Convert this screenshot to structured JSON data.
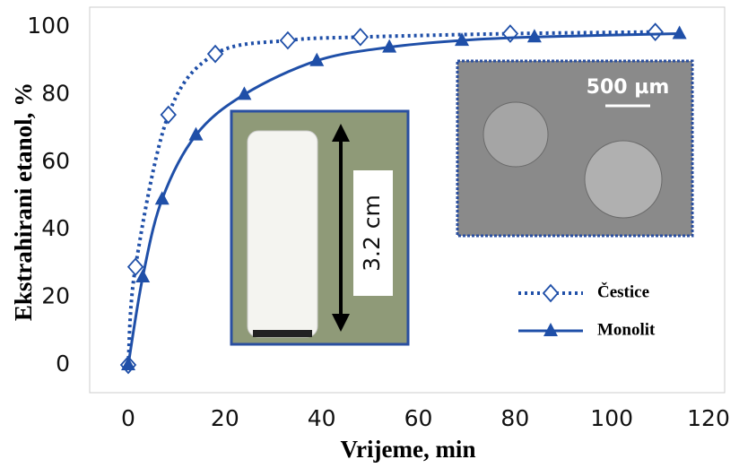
{
  "chart_data": {
    "type": "line",
    "x_label": "Vrijeme, min",
    "y_label": "Ekstrahirani etanol, %",
    "annotations": [
      "3.2 cm",
      "500 µm"
    ],
    "xlim": [
      0,
      120
    ],
    "xticks": [
      0,
      20,
      40,
      60,
      80,
      100,
      120
    ],
    "ylim": [
      0,
      100
    ],
    "yticks": [
      0,
      20,
      40,
      60,
      80,
      100
    ],
    "grid": false,
    "legend": "lower right",
    "series": [
      {
        "name": "Čestice",
        "color": "#1f4fa8",
        "marker": "diamond",
        "dash": true,
        "x": [
          0,
          1.5,
          8.3,
          18,
          33,
          48,
          79,
          109
        ],
        "values": [
          0,
          29,
          74,
          92,
          96,
          97,
          98,
          98.5
        ]
      },
      {
        "name": "Monolit",
        "color": "#1f4fa8",
        "marker": "triangle",
        "dash": false,
        "x": [
          0,
          3,
          7,
          14,
          24,
          39,
          54,
          69,
          84,
          114
        ],
        "values": [
          0,
          26,
          49,
          68,
          80,
          90,
          94,
          96,
          97,
          98
        ]
      }
    ]
  }
}
